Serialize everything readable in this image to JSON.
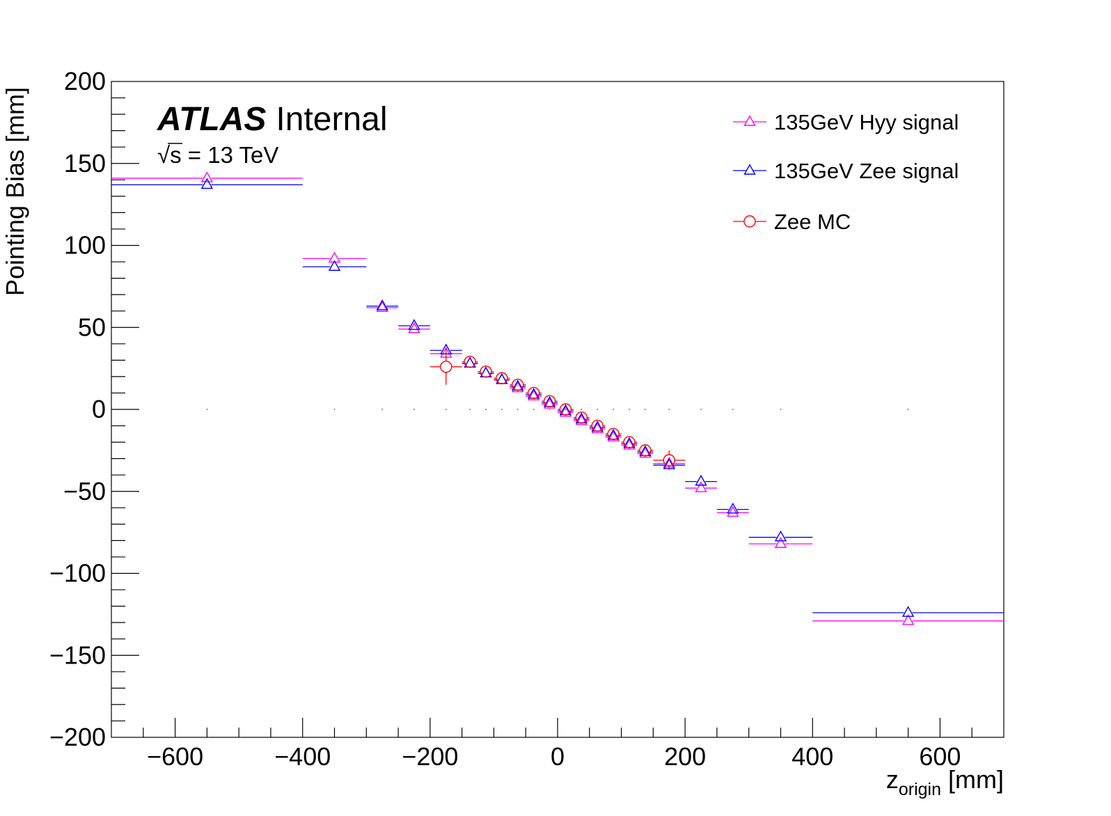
{
  "chart_data": {
    "type": "scatter",
    "title": "",
    "xlabel": "z",
    "xlabel_sub": "origin",
    "xlabel_unit": "[mm]",
    "ylabel": "Pointing Bias [mm]",
    "xlim": [
      -700,
      700
    ],
    "ylim": [
      -200,
      200
    ],
    "x_ticks": [
      -600,
      -400,
      -200,
      0,
      200,
      400,
      600
    ],
    "y_ticks": [
      -200,
      -150,
      -100,
      -50,
      0,
      50,
      100,
      150,
      200
    ],
    "x_tick_labels": [
      "−600",
      "−400",
      "−200",
      "0",
      "200",
      "400",
      "600"
    ],
    "y_tick_labels": [
      "−200",
      "−150",
      "−100",
      "−50",
      "0",
      "50",
      "100",
      "150",
      "200"
    ],
    "grid": false,
    "legend_position": "top-right",
    "annotations": {
      "experiment": "ATLAS",
      "status": "Internal",
      "sqrt_symbol": "√",
      "energy_var": "s",
      "energy_value": " = 13 TeV"
    },
    "bins": [
      [
        -700,
        -400
      ],
      [
        -400,
        -300
      ],
      [
        -300,
        -250
      ],
      [
        -250,
        -200
      ],
      [
        -200,
        -150
      ],
      [
        -150,
        -125
      ],
      [
        -125,
        -100
      ],
      [
        -100,
        -75
      ],
      [
        -75,
        -50
      ],
      [
        -50,
        -25
      ],
      [
        -25,
        0
      ],
      [
        0,
        25
      ],
      [
        25,
        50
      ],
      [
        50,
        75
      ],
      [
        75,
        100
      ],
      [
        100,
        125
      ],
      [
        125,
        150
      ],
      [
        150,
        200
      ],
      [
        200,
        250
      ],
      [
        250,
        300
      ],
      [
        300,
        400
      ],
      [
        400,
        700
      ]
    ],
    "series": [
      {
        "name": "135GeV Hyy signal",
        "color": "#ff00ff",
        "marker": "triangle",
        "x": [
          -550,
          -350,
          -275,
          -225,
          -175,
          -137.5,
          -112.5,
          -87.5,
          -62.5,
          -37.5,
          -12.5,
          12.5,
          37.5,
          62.5,
          87.5,
          112.5,
          137.5,
          175,
          225,
          275,
          350,
          550
        ],
        "y": [
          141,
          92,
          62,
          49,
          34,
          28,
          22,
          18,
          13,
          8,
          3,
          -2,
          -7,
          -12,
          -17,
          -22,
          -27,
          -33,
          -48,
          -63,
          -82,
          -129
        ],
        "bins": [
          [
            -700,
            -400
          ],
          [
            -400,
            -300
          ],
          [
            -300,
            -250
          ],
          [
            -250,
            -200
          ],
          [
            -200,
            -150
          ],
          [
            -150,
            -125
          ],
          [
            -125,
            -100
          ],
          [
            -100,
            -75
          ],
          [
            -75,
            -50
          ],
          [
            -50,
            -25
          ],
          [
            -25,
            0
          ],
          [
            0,
            25
          ],
          [
            25,
            50
          ],
          [
            50,
            75
          ],
          [
            75,
            100
          ],
          [
            100,
            125
          ],
          [
            125,
            150
          ],
          [
            150,
            200
          ],
          [
            200,
            250
          ],
          [
            250,
            300
          ],
          [
            300,
            400
          ],
          [
            400,
            700
          ]
        ]
      },
      {
        "name": "135GeV Zee signal",
        "color": "#0000ff",
        "marker": "triangle",
        "x": [
          -550,
          -350,
          -275,
          -225,
          -175,
          -137.5,
          -112.5,
          -87.5,
          -62.5,
          -37.5,
          -12.5,
          12.5,
          37.5,
          62.5,
          87.5,
          112.5,
          137.5,
          175,
          225,
          275,
          350,
          550
        ],
        "y": [
          137,
          87,
          63,
          51,
          36,
          28,
          22,
          18,
          14,
          9,
          4,
          -1,
          -6,
          -11,
          -16,
          -21,
          -26,
          -34,
          -44,
          -61,
          -78,
          -124
        ],
        "bins": [
          [
            -700,
            -400
          ],
          [
            -400,
            -300
          ],
          [
            -300,
            -250
          ],
          [
            -250,
            -200
          ],
          [
            -200,
            -150
          ],
          [
            -150,
            -125
          ],
          [
            -125,
            -100
          ],
          [
            -100,
            -75
          ],
          [
            -75,
            -50
          ],
          [
            -50,
            -25
          ],
          [
            -25,
            0
          ],
          [
            0,
            25
          ],
          [
            25,
            50
          ],
          [
            50,
            75
          ],
          [
            75,
            100
          ],
          [
            100,
            125
          ],
          [
            125,
            150
          ],
          [
            150,
            200
          ],
          [
            200,
            250
          ],
          [
            250,
            300
          ],
          [
            300,
            400
          ],
          [
            400,
            700
          ]
        ]
      },
      {
        "name": "Zee MC",
        "color": "#ff0000",
        "marker": "circle",
        "x": [
          -175,
          -137.5,
          -112.5,
          -87.5,
          -62.5,
          -37.5,
          -12.5,
          12.5,
          37.5,
          62.5,
          87.5,
          112.5,
          137.5,
          175
        ],
        "y": [
          26,
          29,
          23,
          19,
          15,
          10,
          5,
          0,
          -5,
          -10,
          -15,
          -20,
          -25,
          -31
        ],
        "yerr": [
          11,
          2,
          1.5,
          1,
          1,
          1,
          1,
          1,
          1,
          1,
          1,
          1.5,
          2,
          6
        ],
        "bins": [
          [
            -200,
            -150
          ],
          [
            -150,
            -125
          ],
          [
            -125,
            -100
          ],
          [
            -100,
            -75
          ],
          [
            -75,
            -50
          ],
          [
            -50,
            -25
          ],
          [
            -25,
            0
          ],
          [
            0,
            25
          ],
          [
            25,
            50
          ],
          [
            50,
            75
          ],
          [
            75,
            100
          ],
          [
            100,
            125
          ],
          [
            125,
            150
          ],
          [
            150,
            200
          ]
        ]
      }
    ]
  }
}
